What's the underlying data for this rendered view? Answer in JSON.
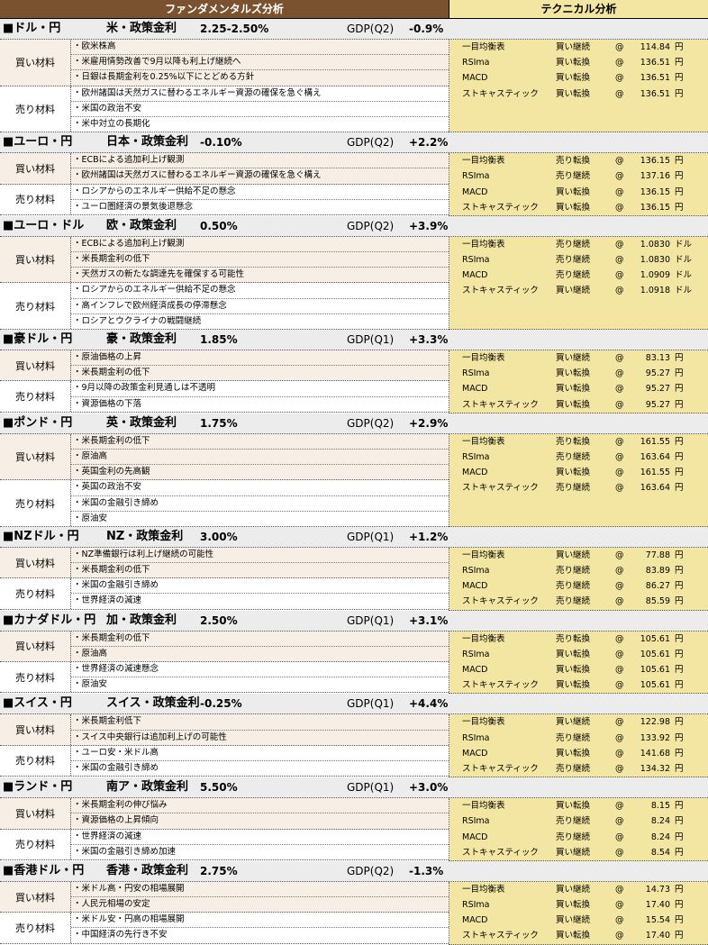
{
  "header": {
    "fundamentals": "ファンダメンタルズ分析",
    "technical": "テクニカル分析"
  },
  "labels": {
    "buy": "買い材料",
    "sell": "売り材料",
    "at": "@"
  },
  "indicators": [
    "一目均衡表",
    "RSIma",
    "MACD",
    "ストキャスティック"
  ],
  "sections": [
    {
      "pair": "■ドル・円",
      "policy": "米・政策金利",
      "rate": "2.25-2.50%",
      "gdp": "GDP(Q2)",
      "gdp_value": "-0.9%",
      "buy": [
        "・欧米株高",
        "・米雇用情勢改善で9月以降も利上げ継続へ",
        "・日銀は長期金利を0.25%以下にとどめる方針"
      ],
      "sell": [
        "・欧州諸国は天然ガスに替わるエネルギー資源の確保を急ぐ構え",
        "・米国の政治不安",
        "・米中対立の長期化"
      ],
      "tech": [
        {
          "signal": "買い継続",
          "value": "114.84",
          "unit": "円"
        },
        {
          "signal": "買い転換",
          "value": "136.51",
          "unit": "円"
        },
        {
          "signal": "買い転換",
          "value": "136.51",
          "unit": "円"
        },
        {
          "signal": "買い転換",
          "value": "136.51",
          "unit": "円"
        }
      ]
    },
    {
      "pair": "■ユーロ・円",
      "policy": "日本・政策金利",
      "rate": "-0.10%",
      "gdp": "GDP(Q2)",
      "gdp_value": "+2.2%",
      "buy": [
        "・ECBによる追加利上げ観測",
        "・欧州諸国は天然ガスに替わるエネルギー資源の確保を急ぐ構え"
      ],
      "sell": [
        "・ロシアからのエネルギー供給不足の懸念",
        "・ユーロ圏経済の景気後退懸念"
      ],
      "tech": [
        {
          "signal": "売り転換",
          "value": "136.15",
          "unit": "円"
        },
        {
          "signal": "売り継続",
          "value": "137.16",
          "unit": "円"
        },
        {
          "signal": "買い転換",
          "value": "136.15",
          "unit": "円"
        },
        {
          "signal": "買い転換",
          "value": "136.15",
          "unit": "円"
        }
      ]
    },
    {
      "pair": "■ユーロ・ドル",
      "policy": "欧・政策金利",
      "rate": "0.50%",
      "gdp": "GDP(Q2)",
      "gdp_value": "+3.9%",
      "buy": [
        "・ECBによる追加利上げ観測",
        "・米長期金利の低下",
        "・天然ガスの新たな調達先を確保する可能性"
      ],
      "sell": [
        "・ロシアからのエネルギー供給不足の懸念",
        "・高インフレで欧州経済成長の停滞懸念",
        "・ロシアとウクライナの戦闘継続"
      ],
      "tech": [
        {
          "signal": "売り継続",
          "value": "1.0830",
          "unit": "ドル"
        },
        {
          "signal": "売り継続",
          "value": "1.0830",
          "unit": "ドル"
        },
        {
          "signal": "売り継続",
          "value": "1.0909",
          "unit": "ドル"
        },
        {
          "signal": "買い継続",
          "value": "1.0918",
          "unit": "ドル"
        }
      ]
    },
    {
      "pair": "■豪ドル・円",
      "policy": "豪・政策金利",
      "rate": "1.85%",
      "gdp": "GDP(Q1)",
      "gdp_value": "+3.3%",
      "buy": [
        "・原油価格の上昇",
        "・米長期金利の低下"
      ],
      "sell": [
        "・9月以降の政策金利見通しは不透明",
        "・資源価格の下落"
      ],
      "tech": [
        {
          "signal": "買い継続",
          "value": "83.13",
          "unit": "円"
        },
        {
          "signal": "買い転換",
          "value": "95.27",
          "unit": "円"
        },
        {
          "signal": "買い転換",
          "value": "95.27",
          "unit": "円"
        },
        {
          "signal": "買い転換",
          "value": "95.27",
          "unit": "円"
        }
      ]
    },
    {
      "pair": "■ポンド・円",
      "policy": "英・政策金利",
      "rate": "1.75%",
      "gdp": "GDP(Q2)",
      "gdp_value": "+2.9%",
      "buy": [
        "・米長期金利の低下",
        "・原油高",
        "・英国金利の先高観"
      ],
      "sell": [
        "・英国の政治不安",
        "・米国の金融引き締め",
        "・原油安"
      ],
      "tech": [
        {
          "signal": "売り転換",
          "value": "161.55",
          "unit": "円"
        },
        {
          "signal": "売り継続",
          "value": "163.64",
          "unit": "円"
        },
        {
          "signal": "買い転換",
          "value": "161.55",
          "unit": "円"
        },
        {
          "signal": "売り継続",
          "value": "163.64",
          "unit": "円"
        }
      ]
    },
    {
      "pair": "■NZドル・円",
      "policy": "NZ・政策金利",
      "rate": "3.00%",
      "gdp": "GDP(Q1)",
      "gdp_value": "+1.2%",
      "buy": [
        "・NZ準備銀行は利上げ継続の可能性",
        "・米長期金利の低下"
      ],
      "sell": [
        "・米国の金融引き締め",
        "・世界経済の減速"
      ],
      "tech": [
        {
          "signal": "買い継続",
          "value": "77.88",
          "unit": "円"
        },
        {
          "signal": "売り継続",
          "value": "83.89",
          "unit": "円"
        },
        {
          "signal": "売り継続",
          "value": "86.27",
          "unit": "円"
        },
        {
          "signal": "売り継続",
          "value": "85.59",
          "unit": "円"
        }
      ]
    },
    {
      "pair": "■カナダドル・円",
      "policy": "加・政策金利",
      "rate": "2.50%",
      "gdp": "GDP(Q1)",
      "gdp_value": "+3.1%",
      "buy": [
        "・米長期金利の低下",
        "・原油高"
      ],
      "sell": [
        "・世界経済の減速懸念",
        "・原油安"
      ],
      "tech": [
        {
          "signal": "売り転換",
          "value": "105.61",
          "unit": "円"
        },
        {
          "signal": "買い転換",
          "value": "105.61",
          "unit": "円"
        },
        {
          "signal": "買い転換",
          "value": "105.61",
          "unit": "円"
        },
        {
          "signal": "買い転換",
          "value": "105.61",
          "unit": "円"
        }
      ]
    },
    {
      "pair": "■スイス・円",
      "policy": "スイス・政策金利",
      "rate": "-0.25%",
      "gdp": "GDP(Q1)",
      "gdp_value": "+4.4%",
      "buy": [
        "・米長期金利低下",
        "・スイス中央銀行は追加利上げの可能性"
      ],
      "sell": [
        "・ユーロ安・米ドル高",
        "・米国の金融引き締め"
      ],
      "tech": [
        {
          "signal": "買い継続",
          "value": "122.98",
          "unit": "円"
        },
        {
          "signal": "売り継続",
          "value": "133.92",
          "unit": "円"
        },
        {
          "signal": "買い転換",
          "value": "141.68",
          "unit": "円"
        },
        {
          "signal": "売り継続",
          "value": "134.32",
          "unit": "円"
        }
      ]
    },
    {
      "pair": "■ランド・円",
      "policy": "南ア・政策金利",
      "rate": "5.50%",
      "gdp": "GDP(Q1)",
      "gdp_value": "+3.0%",
      "buy": [
        "・米長期金利の伸び悩み",
        "・資源価格の上昇傾向"
      ],
      "sell": [
        "・世界経済の減速",
        "・米国の金融引き締め加速"
      ],
      "tech": [
        {
          "signal": "買い転換",
          "value": "8.15",
          "unit": "円"
        },
        {
          "signal": "売り継続",
          "value": "8.24",
          "unit": "円"
        },
        {
          "signal": "売り継続",
          "value": "8.24",
          "unit": "円"
        },
        {
          "signal": "買い継続",
          "value": "8.54",
          "unit": "円"
        }
      ]
    },
    {
      "pair": "■香港ドル・円",
      "policy": "香港・政策金利",
      "rate": "2.75%",
      "gdp": "GDP(Q2)",
      "gdp_value": "-1.3%",
      "buy": [
        "・米ドル高・円安の相場展開",
        "・人民元相場の安定"
      ],
      "sell": [
        "・米ドル安・円高の相場展開",
        "・中国経済の先行き不安"
      ],
      "tech": [
        {
          "signal": "買い継続",
          "value": "14.73",
          "unit": "円"
        },
        {
          "signal": "買い転換",
          "value": "17.40",
          "unit": "円"
        },
        {
          "signal": "買い継続",
          "value": "15.54",
          "unit": "円"
        },
        {
          "signal": "買い転換",
          "value": "17.40",
          "unit": "円"
        }
      ]
    }
  ]
}
